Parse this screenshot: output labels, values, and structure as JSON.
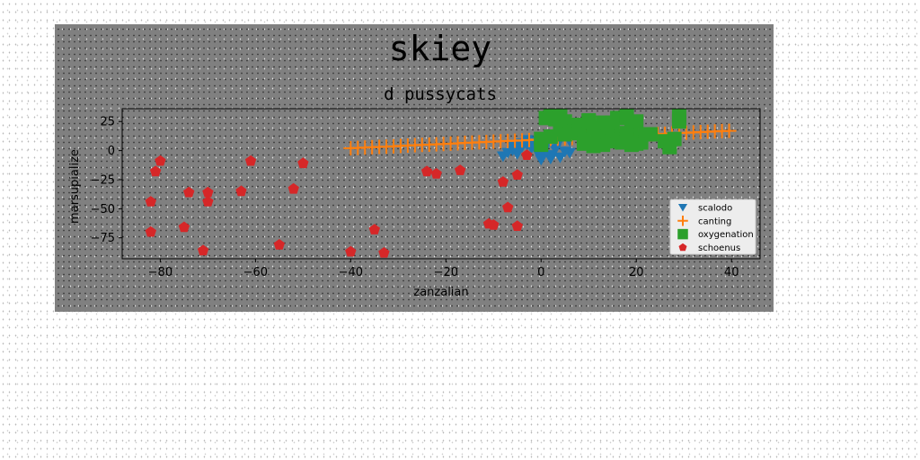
{
  "chart_data": {
    "type": "scatter",
    "suptitle": "skiey",
    "title": "d pussycats",
    "xlabel": "zanzalian",
    "ylabel": "marsupialize",
    "xlim": [
      -88,
      46
    ],
    "ylim": [
      -93,
      36
    ],
    "xticks": [
      -80,
      -60,
      -40,
      -20,
      0,
      20,
      40
    ],
    "yticks": [
      25,
      0,
      -25,
      -50,
      -75
    ],
    "grid": false,
    "legend_position": "lower-right",
    "series": [
      {
        "name": "scalodo",
        "marker": "triangle-down",
        "color": "#1f77b4",
        "x": [
          -8,
          -7,
          -6,
          -5,
          -4,
          -3,
          -2,
          -1,
          0,
          1,
          2,
          3,
          4,
          5,
          6,
          -6,
          -4,
          -2,
          0,
          2,
          4,
          6,
          -5,
          -1,
          3,
          1,
          -3,
          5,
          0,
          2
        ],
        "y": [
          -5,
          -2,
          0,
          2,
          3,
          5,
          6,
          8,
          10,
          8,
          10,
          7,
          9,
          11,
          8,
          4,
          6,
          2,
          -5,
          -7,
          -6,
          -2,
          -3,
          0,
          1,
          3,
          9,
          -1,
          -8,
          -4
        ]
      },
      {
        "name": "canting",
        "marker": "plus",
        "color": "#ff7f0e",
        "x": [
          -40,
          -38.5,
          -37,
          -35.5,
          -34,
          -32.5,
          -31,
          -29.5,
          -28,
          -26.5,
          -25,
          -23.5,
          -22,
          -20.5,
          -19,
          -17.5,
          -16,
          -14.5,
          -13,
          -11.5,
          -10,
          -8.5,
          -7,
          -5.5,
          -4,
          -2.5,
          -1,
          0.5,
          2,
          3.5,
          5,
          6.5,
          8,
          9.5,
          11,
          12.5,
          14,
          15.5,
          17,
          18.5,
          20,
          21.5,
          23,
          24.5,
          26,
          27.5,
          29,
          30.5,
          32,
          33.5,
          35,
          36.5,
          38,
          39.5
        ],
        "y": [
          2,
          2.3,
          2.6,
          2.9,
          3.2,
          3.4,
          3.7,
          4,
          4.3,
          4.6,
          4.9,
          5.1,
          5.4,
          5.7,
          6,
          6.3,
          6.6,
          6.8,
          7.1,
          7.4,
          7.7,
          8,
          8.3,
          8.5,
          8.8,
          9.1,
          9.4,
          9.7,
          10,
          10.2,
          10.5,
          10.8,
          11.1,
          11.4,
          11.7,
          11.9,
          12.2,
          12.5,
          12.8,
          13.1,
          13.4,
          13.6,
          13.9,
          14.2,
          14.5,
          14.8,
          15.1,
          15.3,
          15.6,
          15.9,
          16.2,
          16.5,
          16.8,
          17
        ]
      },
      {
        "name": "oxygenation",
        "marker": "square",
        "color": "#2ca02c",
        "x": [
          0,
          1,
          2,
          3,
          4,
          5,
          7,
          8,
          9,
          10,
          11,
          12,
          13,
          14,
          15,
          16,
          17,
          18,
          19,
          20,
          21,
          22,
          26,
          27,
          28,
          29,
          2,
          4,
          6,
          8,
          10,
          12,
          14,
          16,
          18,
          20,
          5,
          9,
          13,
          17,
          21,
          27,
          29,
          0,
          11,
          15,
          19,
          23
        ],
        "y": [
          5,
          28,
          30,
          27,
          30,
          25,
          22,
          15,
          10,
          25,
          20,
          18,
          24,
          8,
          16,
          28,
          12,
          30,
          20,
          6,
          10,
          14,
          8,
          6,
          10,
          30,
          12,
          18,
          16,
          22,
          26,
          12,
          20,
          9,
          15,
          25,
          14,
          6,
          5,
          7,
          7,
          3,
          25,
          10,
          4,
          24,
          5,
          14
        ]
      },
      {
        "name": "schoenus",
        "marker": "pentagon",
        "color": "#d62728",
        "x": [
          -82,
          -82,
          -81,
          -80,
          -75,
          -74,
          -71,
          -70,
          -70,
          -63,
          -61,
          -55,
          -52,
          -50,
          -40,
          -35,
          -33,
          -24,
          -22,
          -17,
          -11,
          -10,
          -8,
          -7,
          -5,
          -5,
          -3
        ],
        "y": [
          -44,
          -70,
          -18,
          -9,
          -66,
          -36,
          -86,
          -36,
          -44,
          -35,
          -9,
          -81,
          -33,
          -11,
          -87,
          -68,
          -88,
          -18,
          -20,
          -17,
          -63,
          -64,
          -27,
          -49,
          -21,
          -65,
          -4
        ]
      }
    ]
  }
}
